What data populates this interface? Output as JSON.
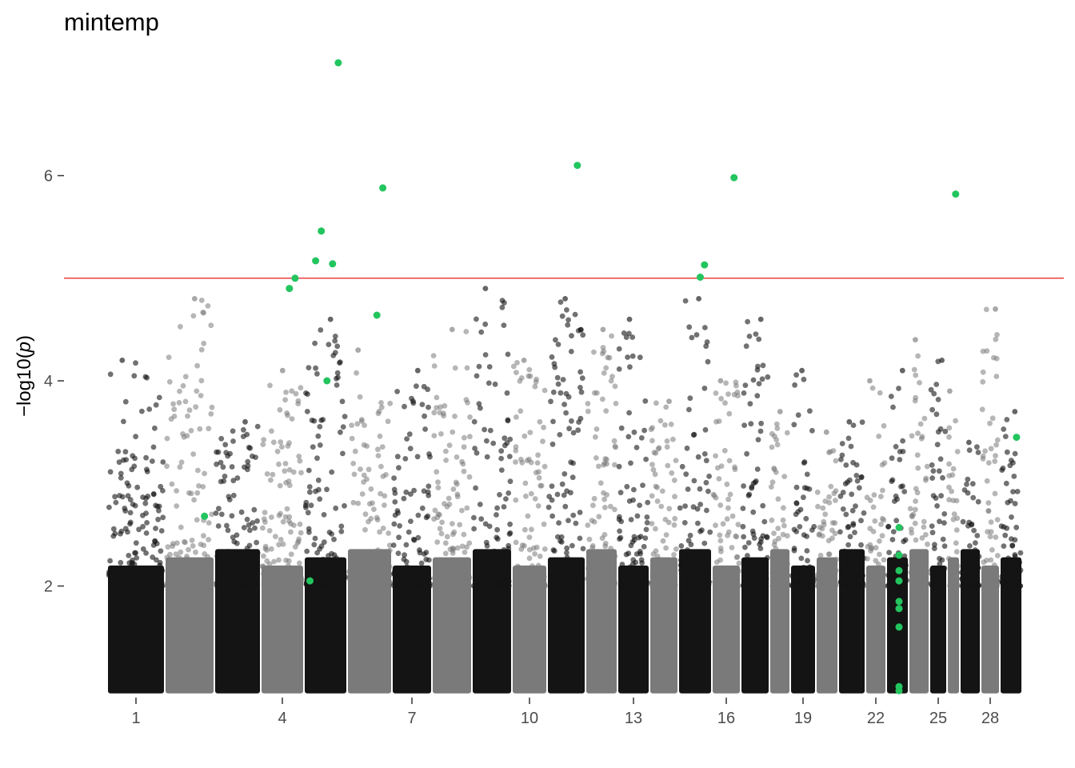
{
  "chart_data": {
    "type": "scatter",
    "title": "mintemp",
    "xlabel": "",
    "ylabel": "−log10(",
    "ylabel_italic": "p",
    "ylabel_close": ")",
    "ylim": [
      0.85,
      7.4
    ],
    "y_ticks": [
      "2",
      "4",
      "6"
    ],
    "y_tick_values": [
      2,
      4,
      6
    ],
    "significance_line": 5.0,
    "significance_color": "#e41a1c",
    "grid": false,
    "legend": "none",
    "chromosome_colors": [
      "#141414",
      "#7a7a7a"
    ],
    "highlight_color": "#22c55e",
    "x_tick_labels": [
      "1",
      "4",
      "7",
      "10",
      "13",
      "16",
      "19",
      "22",
      "25",
      "28"
    ],
    "x_tick_chromosomes": [
      1,
      4,
      7,
      10,
      13,
      16,
      19,
      22,
      25,
      28
    ],
    "chromosomes": [
      {
        "chr": 1,
        "max": 4.2
      },
      {
        "chr": 2,
        "max": 4.8
      },
      {
        "chr": 3,
        "max": 3.6
      },
      {
        "chr": 4,
        "max": 4.1
      },
      {
        "chr": 5,
        "max": 4.6
      },
      {
        "chr": 6,
        "max": 4.3
      },
      {
        "chr": 7,
        "max": 4.1
      },
      {
        "chr": 8,
        "max": 4.5
      },
      {
        "chr": 9,
        "max": 4.9
      },
      {
        "chr": 10,
        "max": 4.2
      },
      {
        "chr": 11,
        "max": 4.8
      },
      {
        "chr": 12,
        "max": 4.5
      },
      {
        "chr": 13,
        "max": 4.6
      },
      {
        "chr": 14,
        "max": 3.8
      },
      {
        "chr": 15,
        "max": 4.8
      },
      {
        "chr": 16,
        "max": 4.0
      },
      {
        "chr": 17,
        "max": 4.6
      },
      {
        "chr": 18,
        "max": 3.7
      },
      {
        "chr": 19,
        "max": 4.1
      },
      {
        "chr": 20,
        "max": 3.5
      },
      {
        "chr": 21,
        "max": 3.6
      },
      {
        "chr": 22,
        "max": 4.0
      },
      {
        "chr": 23,
        "max": 4.1
      },
      {
        "chr": 24,
        "max": 4.4
      },
      {
        "chr": 25,
        "max": 4.2
      },
      {
        "chr": 26,
        "max": 3.9
      },
      {
        "chr": 27,
        "max": 3.4
      },
      {
        "chr": 28,
        "max": 4.7
      },
      {
        "chr": 29,
        "max": 3.7
      }
    ],
    "highlighted_snps": [
      {
        "chr": 2,
        "y": 2.68
      },
      {
        "chr": 4,
        "y": 5.0
      },
      {
        "chr": 4,
        "y": 4.9
      },
      {
        "chr": 5,
        "y": 7.1
      },
      {
        "chr": 5,
        "y": 5.14
      },
      {
        "chr": 5,
        "y": 4.0
      },
      {
        "chr": 5,
        "y": 5.46
      },
      {
        "chr": 5,
        "y": 5.17
      },
      {
        "chr": 5,
        "y": 2.05
      },
      {
        "chr": 6,
        "y": 5.88
      },
      {
        "chr": 6,
        "y": 4.64
      },
      {
        "chr": 11,
        "y": 6.1
      },
      {
        "chr": 15,
        "y": 5.13
      },
      {
        "chr": 15,
        "y": 5.01
      },
      {
        "chr": 16,
        "y": 5.98
      },
      {
        "chr": 23,
        "y": 2.57
      },
      {
        "chr": 23,
        "y": 2.3
      },
      {
        "chr": 23,
        "y": 2.15
      },
      {
        "chr": 23,
        "y": 2.05
      },
      {
        "chr": 23,
        "y": 1.85
      },
      {
        "chr": 23,
        "y": 1.78
      },
      {
        "chr": 23,
        "y": 1.6
      },
      {
        "chr": 23,
        "y": 1.02
      },
      {
        "chr": 23,
        "y": 0.98
      },
      {
        "chr": 26,
        "y": 5.82
      },
      {
        "chr": 29,
        "y": 3.45
      }
    ]
  }
}
